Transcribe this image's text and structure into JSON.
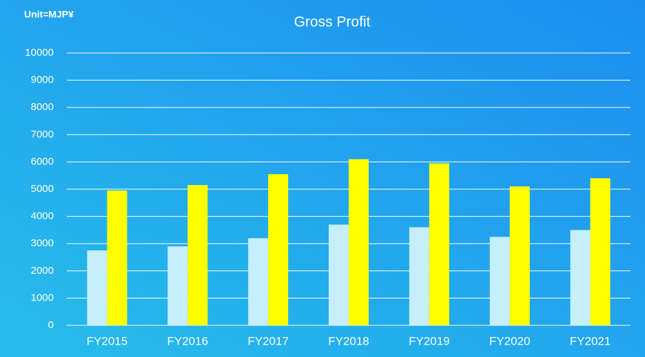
{
  "chart_data": {
    "type": "bar",
    "title": "Gross Profit",
    "unit_label": "Unit=MJP¥",
    "categories": [
      "FY2015",
      "FY2016",
      "FY2017",
      "FY2018",
      "FY2019",
      "FY2020",
      "FY2021"
    ],
    "series": [
      {
        "color": "#c6eefb",
        "values": [
          2750,
          2900,
          3200,
          3700,
          3600,
          3250,
          3500
        ]
      },
      {
        "color": "#ffff00",
        "values": [
          4950,
          5150,
          5550,
          6100,
          5950,
          5100,
          5400
        ]
      }
    ],
    "ylim": [
      0,
      10000
    ],
    "yticks": [
      0,
      1000,
      2000,
      3000,
      4000,
      5000,
      6000,
      7000,
      8000,
      9000,
      10000
    ],
    "grid": true
  }
}
